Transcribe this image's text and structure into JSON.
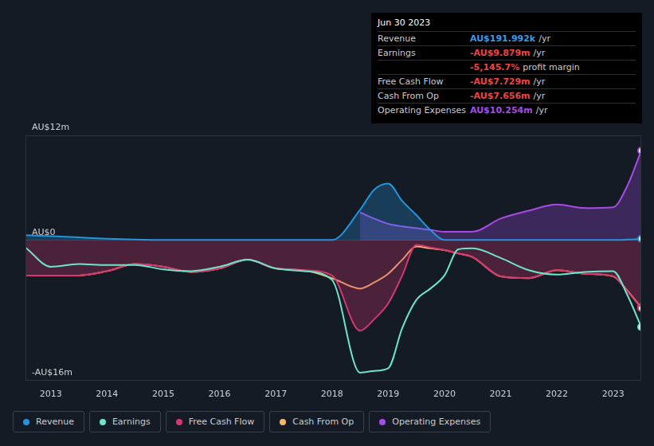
{
  "chart_data": {
    "type": "line",
    "x": [
      2012.55,
      2013,
      2013.5,
      2014,
      2014.5,
      2015,
      2015.5,
      2016,
      2016.5,
      2017,
      2017.5,
      2018,
      2018.5,
      2018.75,
      2019,
      2019.25,
      2019.5,
      2019.75,
      2020,
      2020.25,
      2020.5,
      2021,
      2021.5,
      2022,
      2022.5,
      2023,
      2023.25,
      2023.5
    ],
    "xlim": [
      2012.55,
      2023.5
    ],
    "xticks": [
      2013,
      2014,
      2015,
      2016,
      2017,
      2018,
      2019,
      2020,
      2021,
      2022,
      2023
    ],
    "ylim": [
      -16,
      12
    ],
    "yticks": [
      {
        "value": -16,
        "label": "-AU$16m"
      },
      {
        "value": 0,
        "label": "AU$0"
      },
      {
        "value": 12,
        "label": "AU$12m"
      }
    ],
    "grid": true,
    "legend": "bottom",
    "series": [
      {
        "name": "Revenue",
        "color": "#2394df",
        "type": "area",
        "values": [
          0.6,
          0.5,
          0.35,
          0.2,
          0.1,
          0.05,
          0.05,
          0.05,
          0.05,
          0.05,
          0.05,
          0.05,
          3.5,
          5.8,
          6.5,
          4.5,
          2.9,
          1.2,
          0.05,
          0.05,
          0.05,
          0.05,
          0.05,
          0.05,
          0.05,
          0.05,
          0.1,
          0.192
        ]
      },
      {
        "name": "Earnings",
        "color": "#6ce5c9",
        "type": "line",
        "values": [
          -0.8,
          -3.0,
          -2.7,
          -2.8,
          -2.8,
          -3.3,
          -3.5,
          -3.0,
          -2.2,
          -3.2,
          -3.5,
          -4.5,
          -15.1,
          -14.9,
          -14.6,
          -10,
          -6.8,
          -5.5,
          -4.0,
          -1.0,
          -0.9,
          -2.0,
          -3.4,
          -3.9,
          -3.6,
          -3.5,
          -6.2,
          -9.879
        ]
      },
      {
        "name": "Free Cash Flow",
        "color": "#d6376f",
        "type": "area",
        "values": [
          -4.0,
          -4.0,
          -4.0,
          -3.5,
          -2.7,
          -3.0,
          -3.6,
          -3.2,
          -2.2,
          -3.2,
          -3.4,
          -4.0,
          -10.3,
          -9.0,
          -7.2,
          -4.0,
          -0.5,
          -0.8,
          -1.1,
          -1.5,
          -1.9,
          -4.1,
          -4.3,
          -3.4,
          -3.8,
          -4.1,
          -5.8,
          -7.729
        ]
      },
      {
        "name": "Cash From Op",
        "color": "#f2b66d",
        "type": "line",
        "values": [
          -4.0,
          -4.0,
          -4.0,
          -3.5,
          -2.7,
          -3.0,
          -3.6,
          -3.2,
          -2.2,
          -3.2,
          -3.4,
          -4.3,
          -5.5,
          -4.8,
          -3.8,
          -2.2,
          -0.7,
          -0.9,
          -1.1,
          -1.5,
          -1.9,
          -4.1,
          -4.3,
          -3.4,
          -3.8,
          -4.1,
          -5.7,
          -7.656
        ]
      },
      {
        "name": "Operating Expenses",
        "color": "#a74be8",
        "type": "area",
        "values": [
          null,
          null,
          null,
          null,
          null,
          null,
          null,
          null,
          null,
          null,
          null,
          null,
          3.2,
          2.5,
          1.9,
          1.6,
          1.4,
          1.2,
          1.0,
          1.0,
          1.0,
          2.5,
          3.4,
          4.1,
          3.7,
          3.8,
          6.2,
          10.254
        ]
      }
    ]
  },
  "summary": {
    "date": "Jun 30 2023",
    "rows": [
      {
        "label": "Revenue",
        "value": "AU$191.992k",
        "unit": "/yr",
        "color": "#3b9ae6"
      },
      {
        "label": "Earnings",
        "value": "-AU$9.879m",
        "unit": "/yr",
        "color": "#ef4444"
      },
      {
        "value": "-5,145.7%",
        "unit": "profit margin",
        "color": "#ef4444"
      },
      {
        "label": "Free Cash Flow",
        "value": "-AU$7.729m",
        "unit": "/yr",
        "color": "#ef4444"
      },
      {
        "label": "Cash From Op",
        "value": "-AU$7.656m",
        "unit": "/yr",
        "color": "#ef4444"
      },
      {
        "label": "Operating Expenses",
        "value": "AU$10.254m",
        "unit": "/yr",
        "color": "#a74be8"
      }
    ]
  }
}
